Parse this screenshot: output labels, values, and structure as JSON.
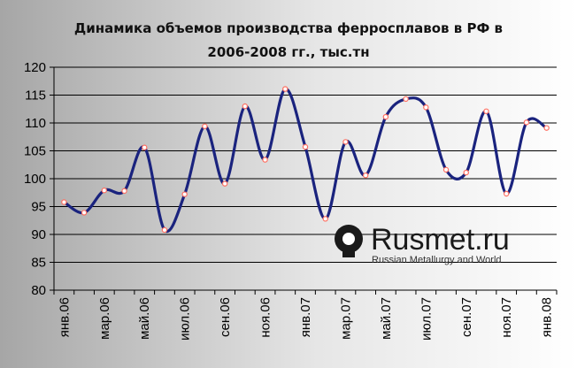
{
  "chart_data": {
    "type": "line",
    "title_line1": "Динамика объемов производства ферросплавов в РФ в",
    "title_line2": "2006-2008 гг., тыс.тн",
    "ylim": [
      80,
      120
    ],
    "yticks": [
      "80",
      "85",
      "90",
      "95",
      "100",
      "105",
      "110",
      "115",
      "120"
    ],
    "grid": true,
    "legend": "none",
    "x": [
      "янв.06",
      "фев.06",
      "мар.06",
      "апр.06",
      "май.06",
      "июн.06",
      "июл.06",
      "авг.06",
      "сен.06",
      "окт.06",
      "ноя.06",
      "дек.06",
      "янв.07",
      "фев.07",
      "мар.07",
      "апр.07",
      "май.07",
      "июн.07",
      "июл.07",
      "авг.07",
      "сен.07",
      "окт.07",
      "ноя.07",
      "дек.07",
      "янв.08"
    ],
    "xtick_labels": [
      "янв.06",
      "мар.06",
      "май.06",
      "июл.06",
      "сен.06",
      "ноя.06",
      "янв.07",
      "мар.07",
      "май.07",
      "июл.07",
      "сен.07",
      "ноя.07",
      "янв.08"
    ],
    "series": [
      {
        "values": [
          95.8,
          93.9,
          97.9,
          97.8,
          105.6,
          90.8,
          97.2,
          109.4,
          99.1,
          113.0,
          103.4,
          116.1,
          105.7,
          92.8,
          106.6,
          100.6,
          111.1,
          114.3,
          112.8,
          101.6,
          101.1,
          112.1,
          97.3,
          110.1,
          109.1
        ],
        "color": "#1a237e",
        "marker_color": "#ff6f61"
      }
    ]
  },
  "watermark": {
    "name": "Rusmet.ru",
    "tagline": "Russian Metallurgy and World"
  },
  "colors": {
    "background_left": "#a6a6a6",
    "background_right": "#ffffff",
    "line": "#1a237e",
    "marker": "#ff6f61"
  }
}
